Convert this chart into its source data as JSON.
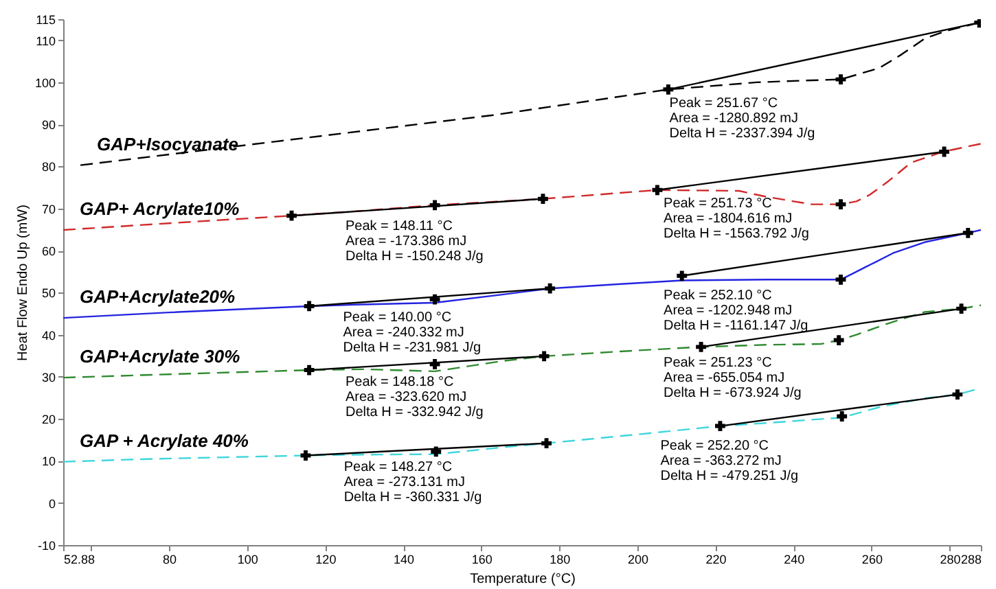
{
  "chart_data": {
    "type": "line",
    "xlabel": "Temperature (°C)",
    "ylabel": "Heat Flow Endo Up (mW)",
    "xlim": [
      52.88,
      288
    ],
    "xticks": [
      52.88,
      {
        "value": 60,
        "label": null
      },
      80,
      100,
      120,
      140,
      160,
      180,
      200,
      220,
      240,
      260,
      280,
      288
    ],
    "ylim": [
      -10,
      115
    ],
    "yticks": [
      -10,
      0,
      10,
      20,
      30,
      40,
      50,
      60,
      70,
      80,
      90,
      100,
      110,
      115
    ],
    "series": [
      {
        "name": "GAP+Isocyanate",
        "color": "#000000",
        "line_style": "dashed",
        "x": [
          57.3,
          107,
          163,
          207.9,
          230.6,
          242.2,
          252.1,
          262,
          267.8,
          273.6,
          279.4,
          287.6
        ],
        "values": [
          80.3,
          85.9,
          92.2,
          98.3,
          100.0,
          100.4,
          100.7,
          103.4,
          106.7,
          110.4,
          112.3,
          114.2
        ]
      },
      {
        "name": "GAP+ Acrylate10%",
        "color": "#d02a2a",
        "line_style": "dashed",
        "x": [
          52.88,
          80,
          111.4,
          130,
          148.1,
          163,
          175.8,
          205.1,
          226,
          233,
          244.6,
          252.1,
          256.1,
          259.6,
          264.3,
          270.1,
          278.3,
          288
        ],
        "values": [
          64.9,
          66.5,
          68.3,
          69.5,
          70.8,
          71.6,
          72.3,
          74.4,
          74.2,
          72.8,
          71.0,
          71.0,
          71.7,
          73.3,
          76.5,
          80.9,
          83.5,
          85.4
        ]
      },
      {
        "name": "GAP+Acrylate20%",
        "color": "#2424e0",
        "line_style": "solid",
        "x": [
          52.88,
          80,
          115.9,
          130,
          148.1,
          165,
          177.6,
          195,
          211.4,
          233,
          252.1,
          258.5,
          265.5,
          273.6,
          284.7,
          288
        ],
        "values": [
          44.0,
          45.3,
          46.8,
          47.2,
          47.6,
          49.5,
          51.0,
          52.0,
          52.9,
          53.1,
          53.1,
          56.1,
          59.4,
          62.0,
          64.2,
          64.9
        ]
      },
      {
        "name": "GAP+Acrylate 30%",
        "color": "#2f8a2f",
        "line_style": "dashed",
        "x": [
          52.88,
          80,
          115.9,
          130,
          148.1,
          165,
          176.1,
          195,
          216.3,
          233,
          247,
          251.6,
          256.1,
          264.3,
          273.6,
          283,
          288
        ],
        "values": [
          29.8,
          30.6,
          31.6,
          31.8,
          31.3,
          33.7,
          34.9,
          36.0,
          37.1,
          37.6,
          37.8,
          38.7,
          40.0,
          42.7,
          45.4,
          46.2,
          47.0
        ]
      },
      {
        "name": "GAP + Acrylate 40%",
        "color": "#3fd6dc",
        "line_style": "dashed",
        "x": [
          52.88,
          72.2,
          115,
          130,
          148.4,
          165,
          176.7,
          200,
          221.2,
          233,
          244.6,
          252.4,
          262,
          273.6,
          282,
          288
        ],
        "values": [
          9.8,
          10.4,
          11.3,
          11.5,
          11.6,
          13.2,
          14.2,
          16.3,
          18.3,
          19.0,
          19.8,
          20.3,
          22.8,
          24.9,
          25.8,
          27.3
        ]
      },
      {
        "color": "#000000",
        "line_style": "solid",
        "x": [
          207.9,
          287.6
        ],
        "values": [
          98.3,
          114.2
        ]
      },
      {
        "color": "#000000",
        "line_style": "solid",
        "x": [
          111.4,
          175.8
        ],
        "values": [
          68.3,
          72.3
        ]
      },
      {
        "color": "#000000",
        "line_style": "solid",
        "x": [
          205.1,
          278.6
        ],
        "values": [
          74.4,
          83.5
        ]
      },
      {
        "color": "#000000",
        "line_style": "solid",
        "x": [
          115.9,
          177.6
        ],
        "values": [
          46.8,
          51.0
        ]
      },
      {
        "color": "#000000",
        "line_style": "solid",
        "x": [
          211.4,
          284.7
        ],
        "values": [
          54.0,
          64.2
        ]
      },
      {
        "color": "#000000",
        "line_style": "solid",
        "x": [
          115.9,
          176.1
        ],
        "values": [
          31.6,
          34.9
        ]
      },
      {
        "color": "#000000",
        "line_style": "solid",
        "x": [
          216.3,
          283
        ],
        "values": [
          37.1,
          46.2
        ]
      },
      {
        "color": "#000000",
        "line_style": "solid",
        "x": [
          115,
          176.7
        ],
        "values": [
          11.3,
          14.2
        ]
      },
      {
        "color": "#000000",
        "line_style": "solid",
        "x": [
          221.2,
          282
        ],
        "values": [
          18.3,
          25.8
        ]
      },
      {
        "type": "scatter",
        "marker": "cross",
        "color": "#000000",
        "x": [
          207.9,
          252.1,
          287.6,
          111.4,
          148.1,
          175.8,
          205.1,
          252.1,
          278.6,
          115.9,
          148.1,
          177.6,
          211.4,
          252.1,
          284.7,
          115.9,
          148.1,
          176.1,
          216.3,
          251.6,
          283,
          115,
          148.4,
          176.7,
          221.2,
          252.4,
          282
        ],
        "values": [
          98.3,
          100.7,
          114.2,
          68.3,
          70.8,
          72.3,
          74.4,
          71.0,
          83.5,
          46.8,
          48.4,
          51.0,
          54.0,
          53.1,
          64.2,
          31.6,
          33.0,
          34.9,
          37.1,
          38.7,
          46.2,
          11.3,
          12.2,
          14.2,
          18.3,
          20.6,
          25.8
        ]
      }
    ],
    "annotations": [
      {
        "text": "Peak = 251.67 °C\nArea = -1280.892 mJ\nDelta H = -2337.394 J/g",
        "x": 208.2,
        "y": 98.4
      },
      {
        "text": "Peak = 148.11 °C\nArea = -173.386 mJ\nDelta H = -150.248 J/g",
        "x": 125.2,
        "y": 69.2
      },
      {
        "text": "Peak = 251.73 °C\nArea = -1804.616 mJ\nDelta H = -1563.792 J/g",
        "x": 206.7,
        "y": 74.6
      },
      {
        "text": "Peak = 140.00 °C\nArea = -240.332 mJ\nDelta H = -231.981 J/g",
        "x": 124.6,
        "y": 47.4
      },
      {
        "text": "Peak = 252.10 °C\nArea = -1202.948 mJ\nDelta H = -1161.147 J/g",
        "x": 206.7,
        "y": 52.6
      },
      {
        "text": "Peak = 148.18 °C\nArea = -323.620 mJ\nDelta H = -332.942 J/g",
        "x": 125.2,
        "y": 32.1
      },
      {
        "text": "Peak = 251.23 °C\nArea = -655.054 mJ\nDelta H = -673.924 J/g",
        "x": 206.7,
        "y": 36.6
      },
      {
        "text": "Peak = 148.27 °C\nArea = -273.131 mJ\nDelta H = -360.331 J/g",
        "x": 124.8,
        "y": 11.8
      },
      {
        "text": "Peak = 252.20 °C\nArea = -363.272 mJ\nDelta H = -479.251 J/g",
        "x": 205.9,
        "y": 16.9
      }
    ]
  }
}
